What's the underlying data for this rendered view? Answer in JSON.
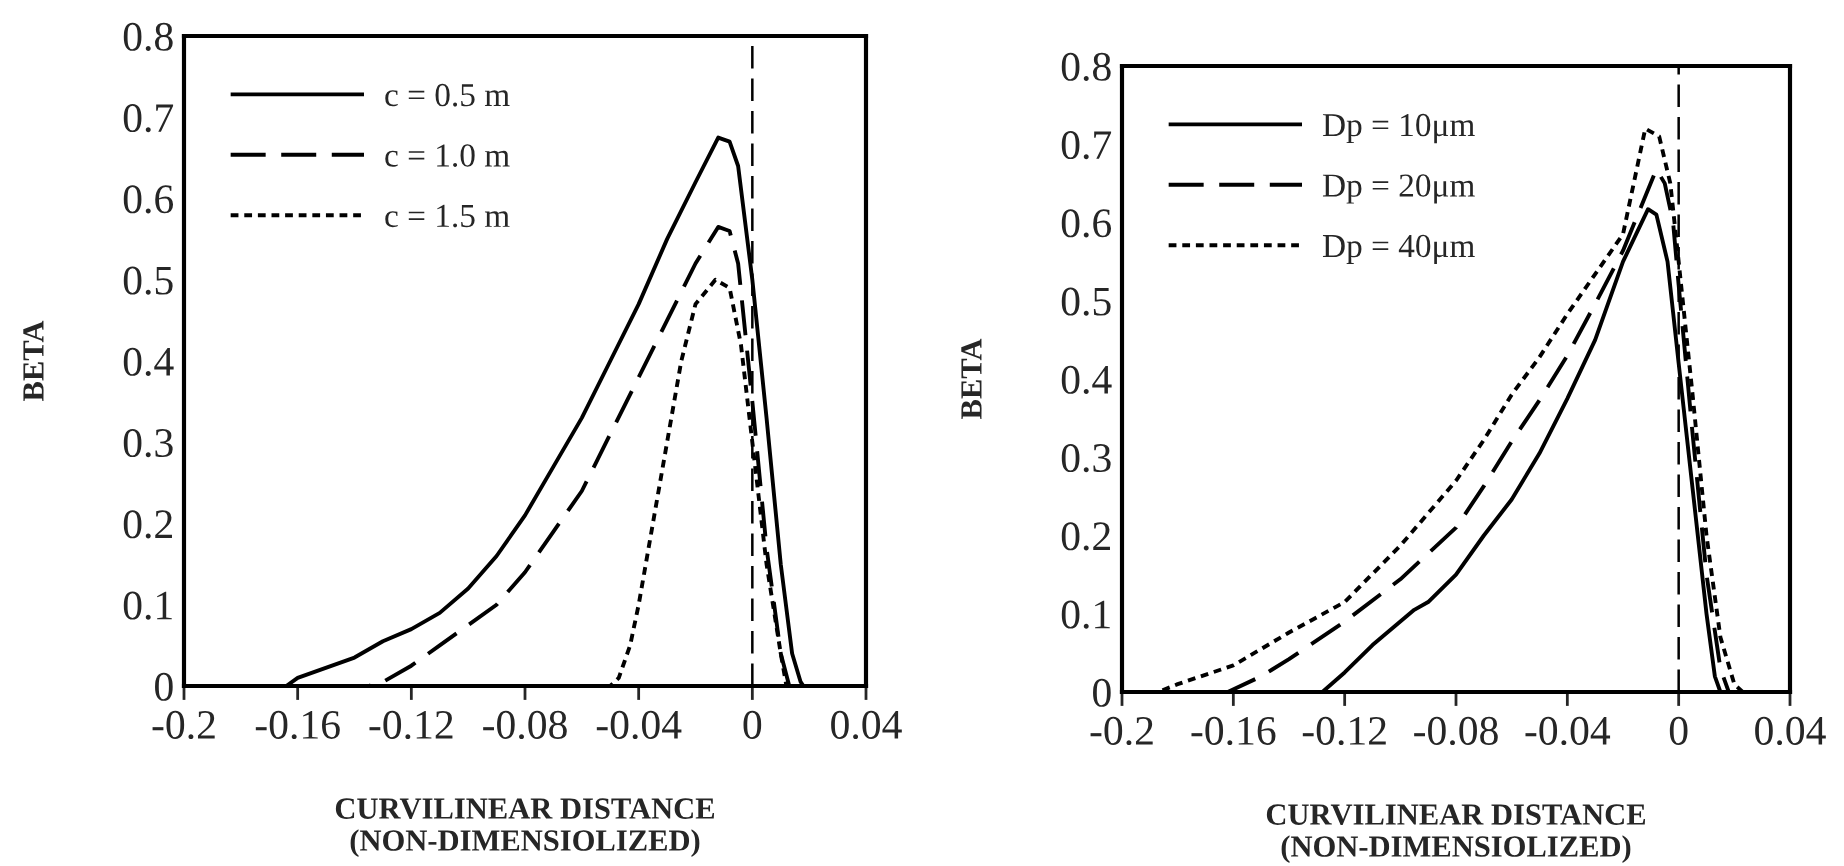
{
  "chart_data": [
    {
      "type": "line",
      "xlabel": "CURVILINEAR DISTANCE\n(NON-DIMENSIOLIZED)",
      "ylabel": "BETA",
      "xlim": [
        -0.2,
        0.04
      ],
      "ylim": [
        0,
        0.8
      ],
      "xticks": [
        -0.2,
        -0.16,
        -0.12,
        -0.08,
        -0.04,
        0,
        0.04
      ],
      "yticks": [
        0,
        0.1,
        0.2,
        0.3,
        0.4,
        0.5,
        0.6,
        0.7,
        0.8
      ],
      "legend": "top left",
      "grid": false,
      "marker": "none",
      "ref_lines": [
        {
          "axis": "x",
          "value": 0,
          "line_style": "dashed",
          "color": "#000000"
        }
      ],
      "series": [
        {
          "name": "c = 0.5 m",
          "color": "#000000",
          "line_style": "solid",
          "x": [
            -0.2,
            -0.164,
            -0.16,
            -0.14,
            -0.13,
            -0.12,
            -0.11,
            -0.1,
            -0.09,
            -0.08,
            -0.07,
            -0.06,
            -0.05,
            -0.04,
            -0.03,
            -0.02,
            -0.012,
            -0.008,
            -0.005,
            0,
            0.005,
            0.01,
            0.014,
            0.017,
            0.018,
            0.04
          ],
          "values": [
            0,
            0,
            0.01,
            0.035,
            0.055,
            0.07,
            0.09,
            0.12,
            0.16,
            0.21,
            0.27,
            0.33,
            0.4,
            0.47,
            0.55,
            0.62,
            0.675,
            0.67,
            0.64,
            0.5,
            0.33,
            0.15,
            0.04,
            0.005,
            0,
            0
          ]
        },
        {
          "name": "c = 1.0 m",
          "color": "#000000",
          "line_style": "dashed",
          "x": [
            -0.2,
            -0.135,
            -0.13,
            -0.12,
            -0.11,
            -0.1,
            -0.09,
            -0.08,
            -0.07,
            -0.06,
            -0.05,
            -0.04,
            -0.03,
            -0.02,
            -0.012,
            -0.008,
            -0.005,
            0,
            0.005,
            0.01,
            0.013,
            0.04
          ],
          "values": [
            0,
            0,
            0.005,
            0.025,
            0.05,
            0.075,
            0.1,
            0.14,
            0.19,
            0.24,
            0.31,
            0.38,
            0.45,
            0.52,
            0.565,
            0.56,
            0.52,
            0.35,
            0.17,
            0.04,
            0,
            0
          ]
        },
        {
          "name": "c = 1.5 m",
          "color": "#000000",
          "line_style": "dotted",
          "x": [
            -0.2,
            -0.05,
            -0.047,
            -0.043,
            -0.04,
            -0.035,
            -0.03,
            -0.025,
            -0.02,
            -0.013,
            -0.008,
            -0.004,
            0,
            0.005,
            0.01,
            0.012,
            0.04
          ],
          "values": [
            0,
            0,
            0.01,
            0.05,
            0.1,
            0.2,
            0.3,
            0.4,
            0.47,
            0.5,
            0.49,
            0.42,
            0.3,
            0.15,
            0.04,
            0,
            0
          ]
        }
      ]
    },
    {
      "type": "line",
      "xlabel": "CURVILINEAR DISTANCE\n(NON-DIMENSIOLIZED)",
      "ylabel": "BETA",
      "xlim": [
        -0.2,
        0.04
      ],
      "ylim": [
        0,
        0.8
      ],
      "xticks": [
        -0.2,
        -0.16,
        -0.12,
        -0.08,
        -0.04,
        0,
        0.04
      ],
      "yticks": [
        0,
        0.1,
        0.2,
        0.3,
        0.4,
        0.5,
        0.6,
        0.7,
        0.8
      ],
      "legend": "top left",
      "grid": false,
      "marker": "none",
      "ref_lines": [
        {
          "axis": "x",
          "value": 0,
          "line_style": "dashed",
          "color": "#000000"
        }
      ],
      "series": [
        {
          "name": "Dp = 10μm",
          "color": "#000000",
          "line_style": "solid",
          "x": [
            -0.2,
            -0.128,
            -0.12,
            -0.11,
            -0.1,
            -0.095,
            -0.09,
            -0.08,
            -0.07,
            -0.06,
            -0.05,
            -0.04,
            -0.03,
            -0.02,
            -0.011,
            -0.008,
            -0.004,
            0,
            0.005,
            0.01,
            0.013,
            0.015,
            0.04
          ],
          "values": [
            0,
            0,
            0.025,
            0.06,
            0.09,
            0.105,
            0.115,
            0.15,
            0.2,
            0.246,
            0.305,
            0.375,
            0.45,
            0.55,
            0.617,
            0.61,
            0.55,
            0.42,
            0.26,
            0.1,
            0.02,
            0,
            0
          ]
        },
        {
          "name": "Dp = 20μm",
          "color": "#000000",
          "line_style": "dashed",
          "x": [
            -0.2,
            -0.162,
            -0.15,
            -0.14,
            -0.12,
            -0.1,
            -0.08,
            -0.07,
            -0.06,
            -0.05,
            -0.04,
            -0.03,
            -0.02,
            -0.008,
            -0.005,
            -0.002,
            0,
            0.005,
            0.01,
            0.015,
            0.018,
            0.04
          ],
          "values": [
            0,
            0,
            0.02,
            0.042,
            0.09,
            0.144,
            0.21,
            0.263,
            0.32,
            0.373,
            0.43,
            0.496,
            0.564,
            0.668,
            0.65,
            0.6,
            0.52,
            0.33,
            0.15,
            0.03,
            0,
            0
          ]
        },
        {
          "name": "Dp = 40μm",
          "color": "#000000",
          "line_style": "dotted",
          "x": [
            -0.2,
            -0.187,
            -0.18,
            -0.16,
            -0.14,
            -0.12,
            -0.1,
            -0.08,
            -0.07,
            -0.06,
            -0.05,
            -0.04,
            -0.03,
            -0.02,
            -0.012,
            -0.007,
            -0.003,
            0,
            0.005,
            0.01,
            0.015,
            0.02,
            0.023,
            0.04
          ],
          "values": [
            0,
            0,
            0.01,
            0.034,
            0.076,
            0.115,
            0.187,
            0.27,
            0.322,
            0.38,
            0.428,
            0.483,
            0.534,
            0.585,
            0.72,
            0.71,
            0.65,
            0.55,
            0.38,
            0.2,
            0.07,
            0.01,
            0,
            0
          ]
        }
      ]
    }
  ]
}
